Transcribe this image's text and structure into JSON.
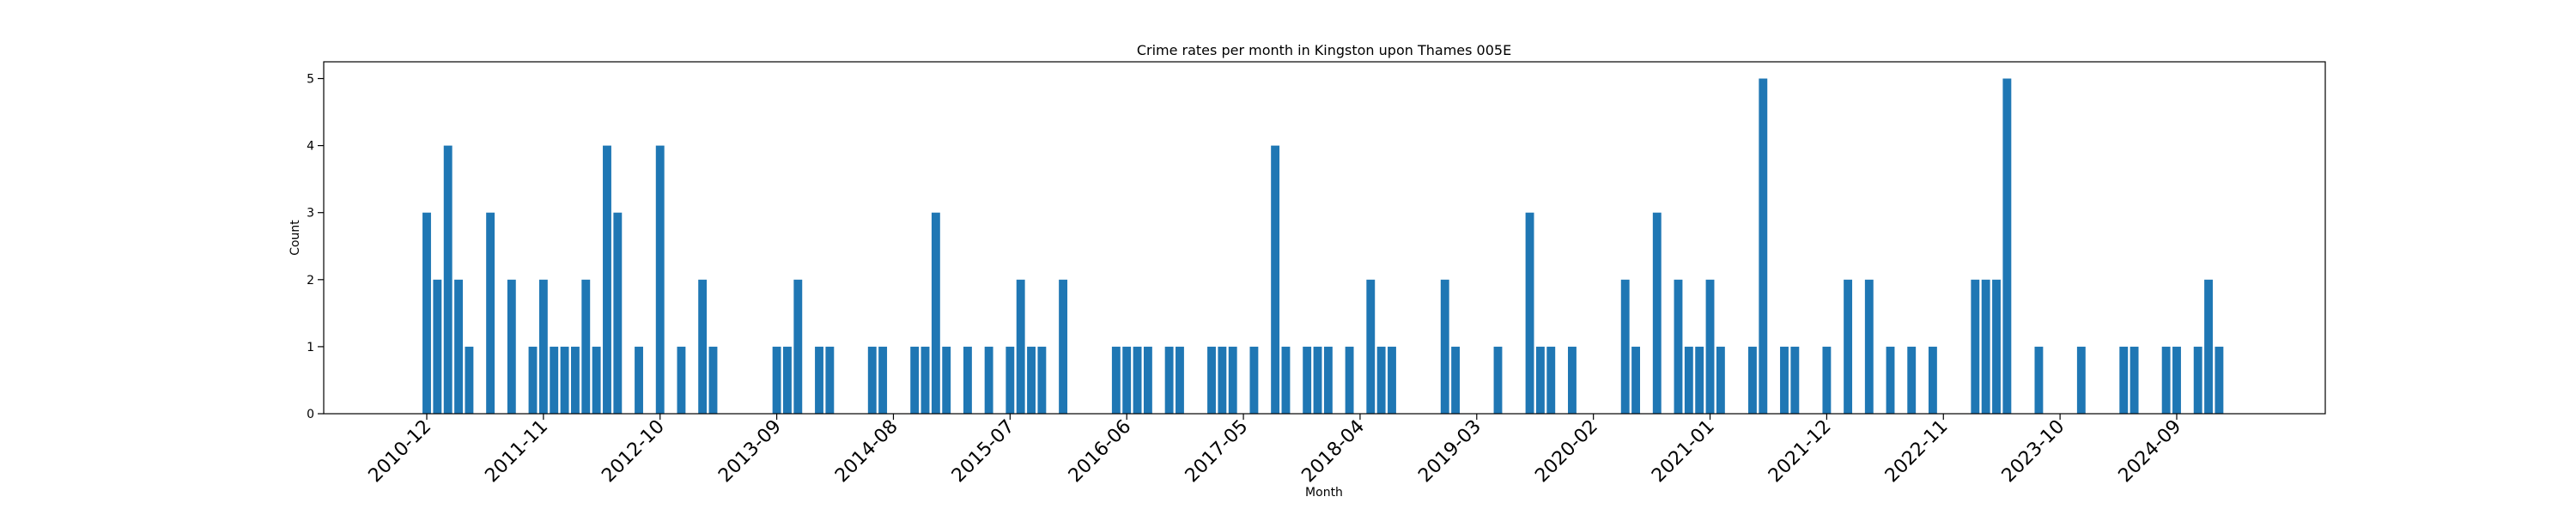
{
  "chart_data": {
    "type": "bar",
    "title": "Crime rates per month in Kingston upon Thames 005E",
    "xlabel": "Month",
    "ylabel": "Count",
    "ylim": [
      0,
      5.25
    ],
    "yticks": [
      0,
      1,
      2,
      3,
      4,
      5
    ],
    "xticks": [
      "2010-12",
      "2011-11",
      "2012-10",
      "2013-09",
      "2014-08",
      "2015-07",
      "2016-06",
      "2017-05",
      "2018-04",
      "2019-03",
      "2020-02",
      "2021-01",
      "2021-12",
      "2022-11",
      "2023-10",
      "2024-09"
    ],
    "bar_color": "#1f77b4",
    "grid": false,
    "x": [
      "2010-12",
      "2011-01",
      "2011-02",
      "2011-03",
      "2011-04",
      "2011-06",
      "2011-08",
      "2011-10",
      "2011-11",
      "2011-12",
      "2012-01",
      "2012-02",
      "2012-03",
      "2012-04",
      "2012-05",
      "2012-06",
      "2012-08",
      "2012-10",
      "2012-12",
      "2013-02",
      "2013-03",
      "2013-09",
      "2013-10",
      "2013-11",
      "2014-01",
      "2014-02",
      "2014-06",
      "2014-07",
      "2014-10",
      "2014-11",
      "2014-12",
      "2015-01",
      "2015-03",
      "2015-05",
      "2015-07",
      "2015-08",
      "2015-09",
      "2015-10",
      "2015-12",
      "2016-05",
      "2016-06",
      "2016-07",
      "2016-08",
      "2016-10",
      "2016-11",
      "2017-02",
      "2017-03",
      "2017-04",
      "2017-06",
      "2017-08",
      "2017-09",
      "2017-11",
      "2017-12",
      "2018-01",
      "2018-03",
      "2018-05",
      "2018-06",
      "2018-07",
      "2018-12",
      "2019-01",
      "2019-05",
      "2019-08",
      "2019-09",
      "2019-10",
      "2019-12",
      "2020-05",
      "2020-06",
      "2020-08",
      "2020-10",
      "2020-11",
      "2020-12",
      "2021-01",
      "2021-02",
      "2021-05",
      "2021-06",
      "2021-08",
      "2021-09",
      "2021-12",
      "2022-02",
      "2022-04",
      "2022-06",
      "2022-08",
      "2022-10",
      "2023-02",
      "2023-03",
      "2023-04",
      "2023-05",
      "2023-08",
      "2023-12",
      "2024-04",
      "2024-05",
      "2024-08",
      "2024-09",
      "2024-11",
      "2024-12",
      "2025-01"
    ],
    "values": [
      3,
      2,
      4,
      2,
      1,
      3,
      2,
      1,
      2,
      1,
      1,
      1,
      2,
      1,
      4,
      3,
      1,
      4,
      1,
      2,
      1,
      1,
      1,
      2,
      1,
      1,
      1,
      1,
      1,
      1,
      3,
      1,
      1,
      1,
      1,
      2,
      1,
      1,
      2,
      1,
      1,
      1,
      1,
      1,
      1,
      1,
      1,
      1,
      1,
      4,
      1,
      1,
      1,
      1,
      1,
      2,
      1,
      1,
      2,
      1,
      1,
      3,
      1,
      1,
      1,
      2,
      1,
      3,
      2,
      1,
      1,
      2,
      1,
      1,
      5,
      1,
      1,
      1,
      2,
      2,
      1,
      1,
      1,
      2,
      2,
      2,
      5,
      1,
      1,
      1,
      1,
      1,
      1,
      1,
      2,
      1
    ]
  }
}
